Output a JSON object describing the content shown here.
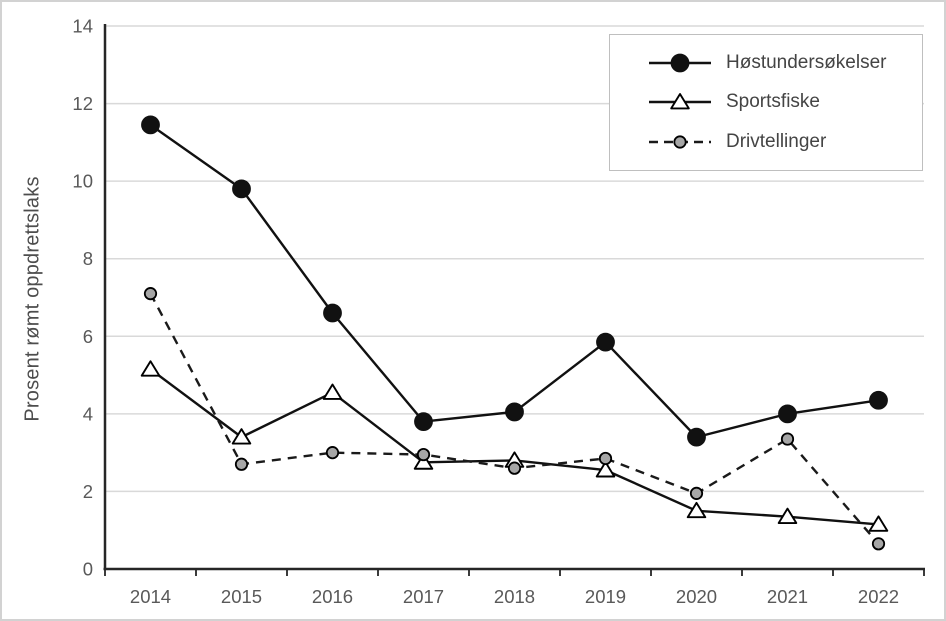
{
  "figure": {
    "kind": "line-chart-figure"
  },
  "chart_data": {
    "type": "line",
    "title": "",
    "xlabel": "",
    "ylabel": "Prosent rømt oppdrettslaks",
    "categories": [
      "2014",
      "2015",
      "2016",
      "2017",
      "2018",
      "2019",
      "2020",
      "2021",
      "2022"
    ],
    "series": [
      {
        "name": "Høstundersøkelser",
        "values": [
          11.45,
          9.8,
          6.6,
          3.8,
          4.05,
          5.85,
          3.4,
          4.0,
          4.35
        ],
        "line_style": "solid",
        "marker": "circle",
        "marker_fill": "#111111",
        "marker_stroke": "#111111",
        "marker_radius": 8.5,
        "line_color": "#111111"
      },
      {
        "name": "Sportsfiske",
        "values": [
          5.15,
          3.4,
          4.55,
          2.75,
          2.8,
          2.55,
          1.5,
          1.35,
          1.15
        ],
        "line_style": "solid",
        "marker": "triangle",
        "marker_fill": "#ffffff",
        "marker_stroke": "#000000",
        "marker_radius": 8,
        "line_color": "#111111"
      },
      {
        "name": "Drivtellinger",
        "values": [
          7.1,
          2.7,
          3.0,
          2.95,
          2.6,
          2.85,
          1.95,
          3.35,
          0.65
        ],
        "line_style": "dashed",
        "marker": "circle",
        "marker_fill": "#a6a6a6",
        "marker_stroke": "#000000",
        "marker_radius": 5.7,
        "line_color": "#1a1a1a"
      }
    ],
    "ylim": [
      0,
      14
    ],
    "ytick_step": 2,
    "grid": "horizontal",
    "legend_position": "top-right",
    "colors": {
      "grid": "#d9d9d9",
      "axis": "#262626",
      "tick_label": "#595959",
      "legend_text": "#444444",
      "figure_border": "#d2d2d2",
      "background": "#ffffff"
    }
  }
}
